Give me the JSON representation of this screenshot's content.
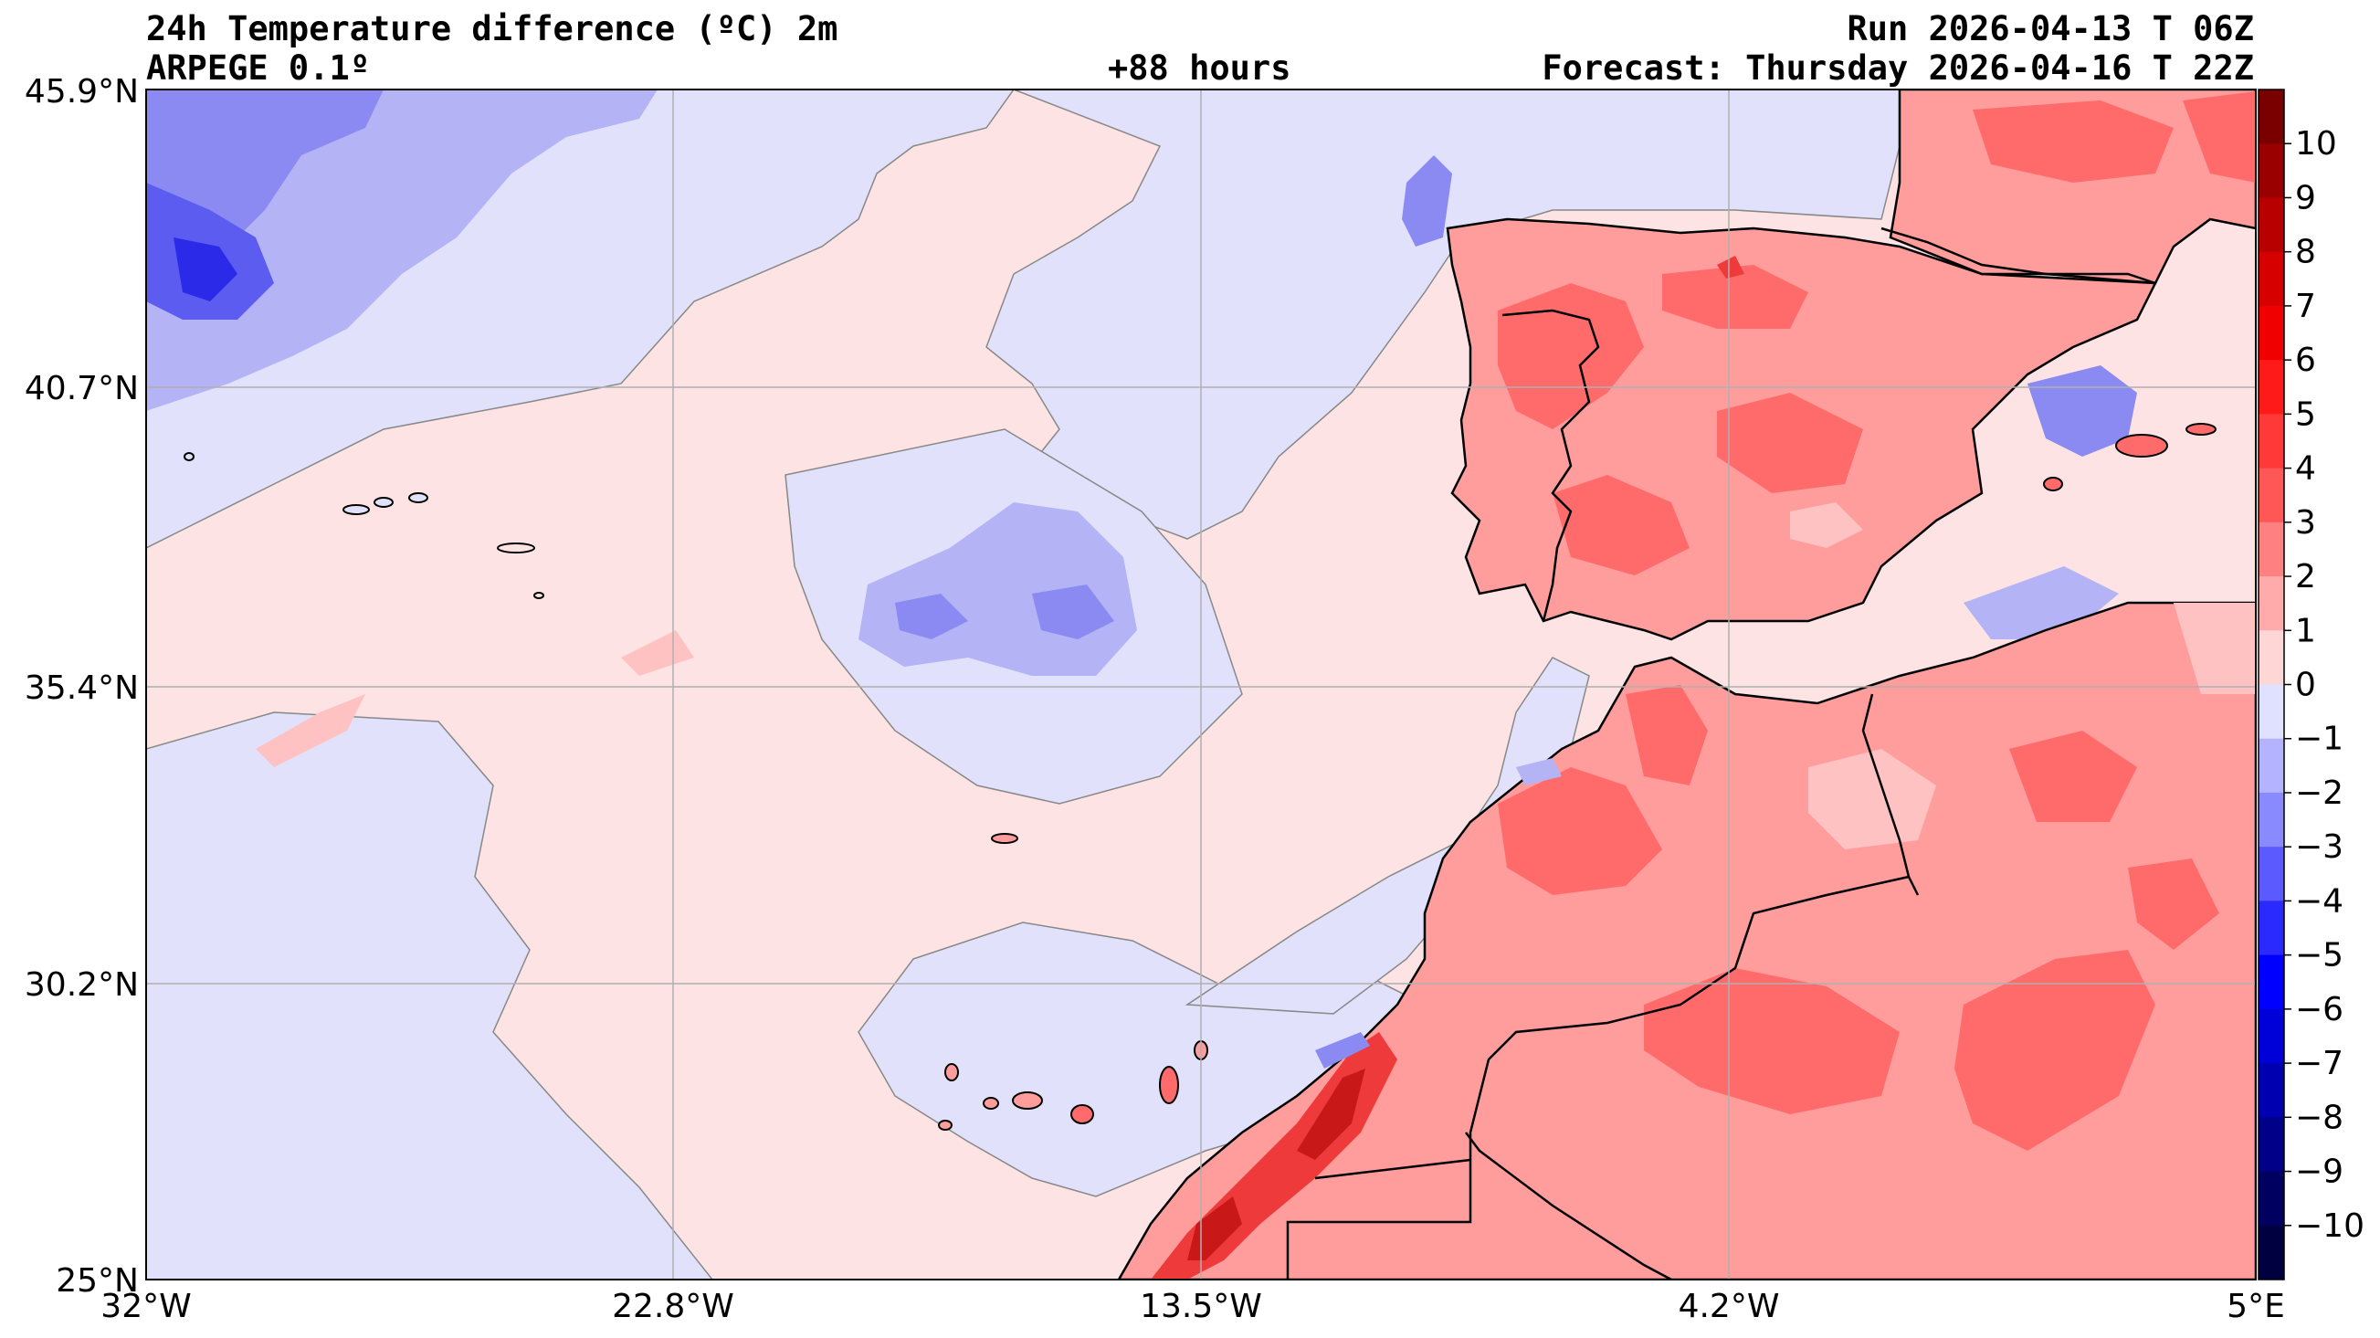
{
  "header": {
    "title": "24h Temperature difference (ºC) 2m",
    "model": "ARPEGE 0.1º",
    "lead": "+88 hours",
    "run": "Run 2026-04-13 T 06Z",
    "forecast": "Forecast: Thursday 2026-04-16 T 22Z"
  },
  "axes": {
    "lat_labels": [
      "45.9°N",
      "40.7°N",
      "35.4°N",
      "30.2°N",
      "25°N"
    ],
    "lon_labels": [
      "32°W",
      "22.8°W",
      "13.5°W",
      "4.2°W",
      "5°E"
    ]
  },
  "colorbar": {
    "labels": [
      "10",
      "9",
      "8",
      "7",
      "6",
      "5",
      "4",
      "3",
      "2",
      "1",
      "0",
      "−1",
      "−2",
      "−3",
      "−4",
      "−5",
      "−6",
      "−7",
      "−8",
      "−9",
      "−10"
    ],
    "colors": [
      "#7a0000",
      "#9a0000",
      "#b80000",
      "#d60000",
      "#f00000",
      "#ff1a1a",
      "#ff3838",
      "#ff5656",
      "#ff8080",
      "#ffabab",
      "#ffd6d6",
      "#e0e0ff",
      "#b3b3ff",
      "#8a8aff",
      "#5a5aff",
      "#2a2aff",
      "#0000ff",
      "#0000d8",
      "#0000b0",
      "#000088",
      "#000060",
      "#000040"
    ]
  },
  "map_colors": {
    "ocean_warm": "#fde3e3",
    "ocean_cool": "#e1e1fb",
    "blue1": "#b3b3f5",
    "blue2": "#8a8af2",
    "blue3": "#5c5cf0",
    "blue4": "#2a2ae8",
    "red1": "#ffc2c2",
    "red2": "#ff9c9c",
    "red3": "#ff6b6b",
    "red4": "#ee3a3a",
    "red5": "#c81818"
  }
}
